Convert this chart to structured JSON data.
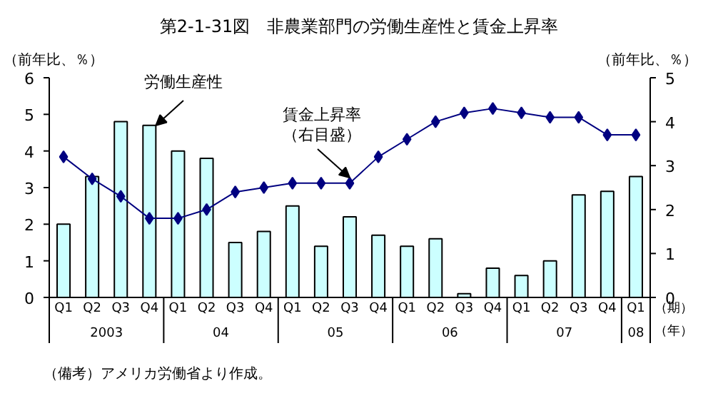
{
  "chart_data": {
    "type": "bar",
    "title": "第2-1-31図　非農業部門の労働生産性と賃金上昇率",
    "ylabel": "（前年比、％）",
    "y2label": "（前年比、％）",
    "xlabel": "（期）",
    "categories": [
      "Q1",
      "Q2",
      "Q3",
      "Q4",
      "Q1",
      "Q2",
      "Q3",
      "Q4",
      "Q1",
      "Q2",
      "Q3",
      "Q4",
      "Q1",
      "Q2",
      "Q3",
      "Q4",
      "Q1",
      "Q2",
      "Q3",
      "Q4",
      "Q1"
    ],
    "series": [
      {
        "name": "労働生産性",
        "color": "#ccffff",
        "values": [
          2.0,
          3.3,
          4.8,
          4.7,
          4.0,
          3.8,
          1.5,
          1.8,
          2.5,
          1.4,
          2.2,
          1.7,
          1.4,
          1.6,
          0.1,
          0.8,
          0.6,
          1.0,
          2.8,
          2.9,
          3.3
        ]
      },
      {
        "name": "賃金上昇率（右目盛）",
        "type": "line",
        "axis": "y2",
        "color": "#000080",
        "marker": "diamond",
        "values": [
          3.2,
          2.7,
          2.3,
          1.8,
          1.8,
          2.0,
          2.4,
          2.5,
          2.6,
          2.6,
          2.6,
          3.2,
          3.6,
          4.0,
          4.2,
          4.3,
          4.2,
          4.1,
          4.1,
          3.7,
          3.7
        ]
      }
    ],
    "ylim": [
      0,
      6
    ],
    "yticks": [
      0,
      1,
      2,
      3,
      4,
      5,
      6
    ],
    "y2lim": [
      0,
      5
    ],
    "y2ticks": [
      0,
      1,
      2,
      3,
      4,
      5
    ],
    "annotations": [
      "（年）",
      "2003",
      "04",
      "05",
      "06",
      "07",
      "08",
      "（備考）アメリカ労働省より作成。"
    ]
  }
}
